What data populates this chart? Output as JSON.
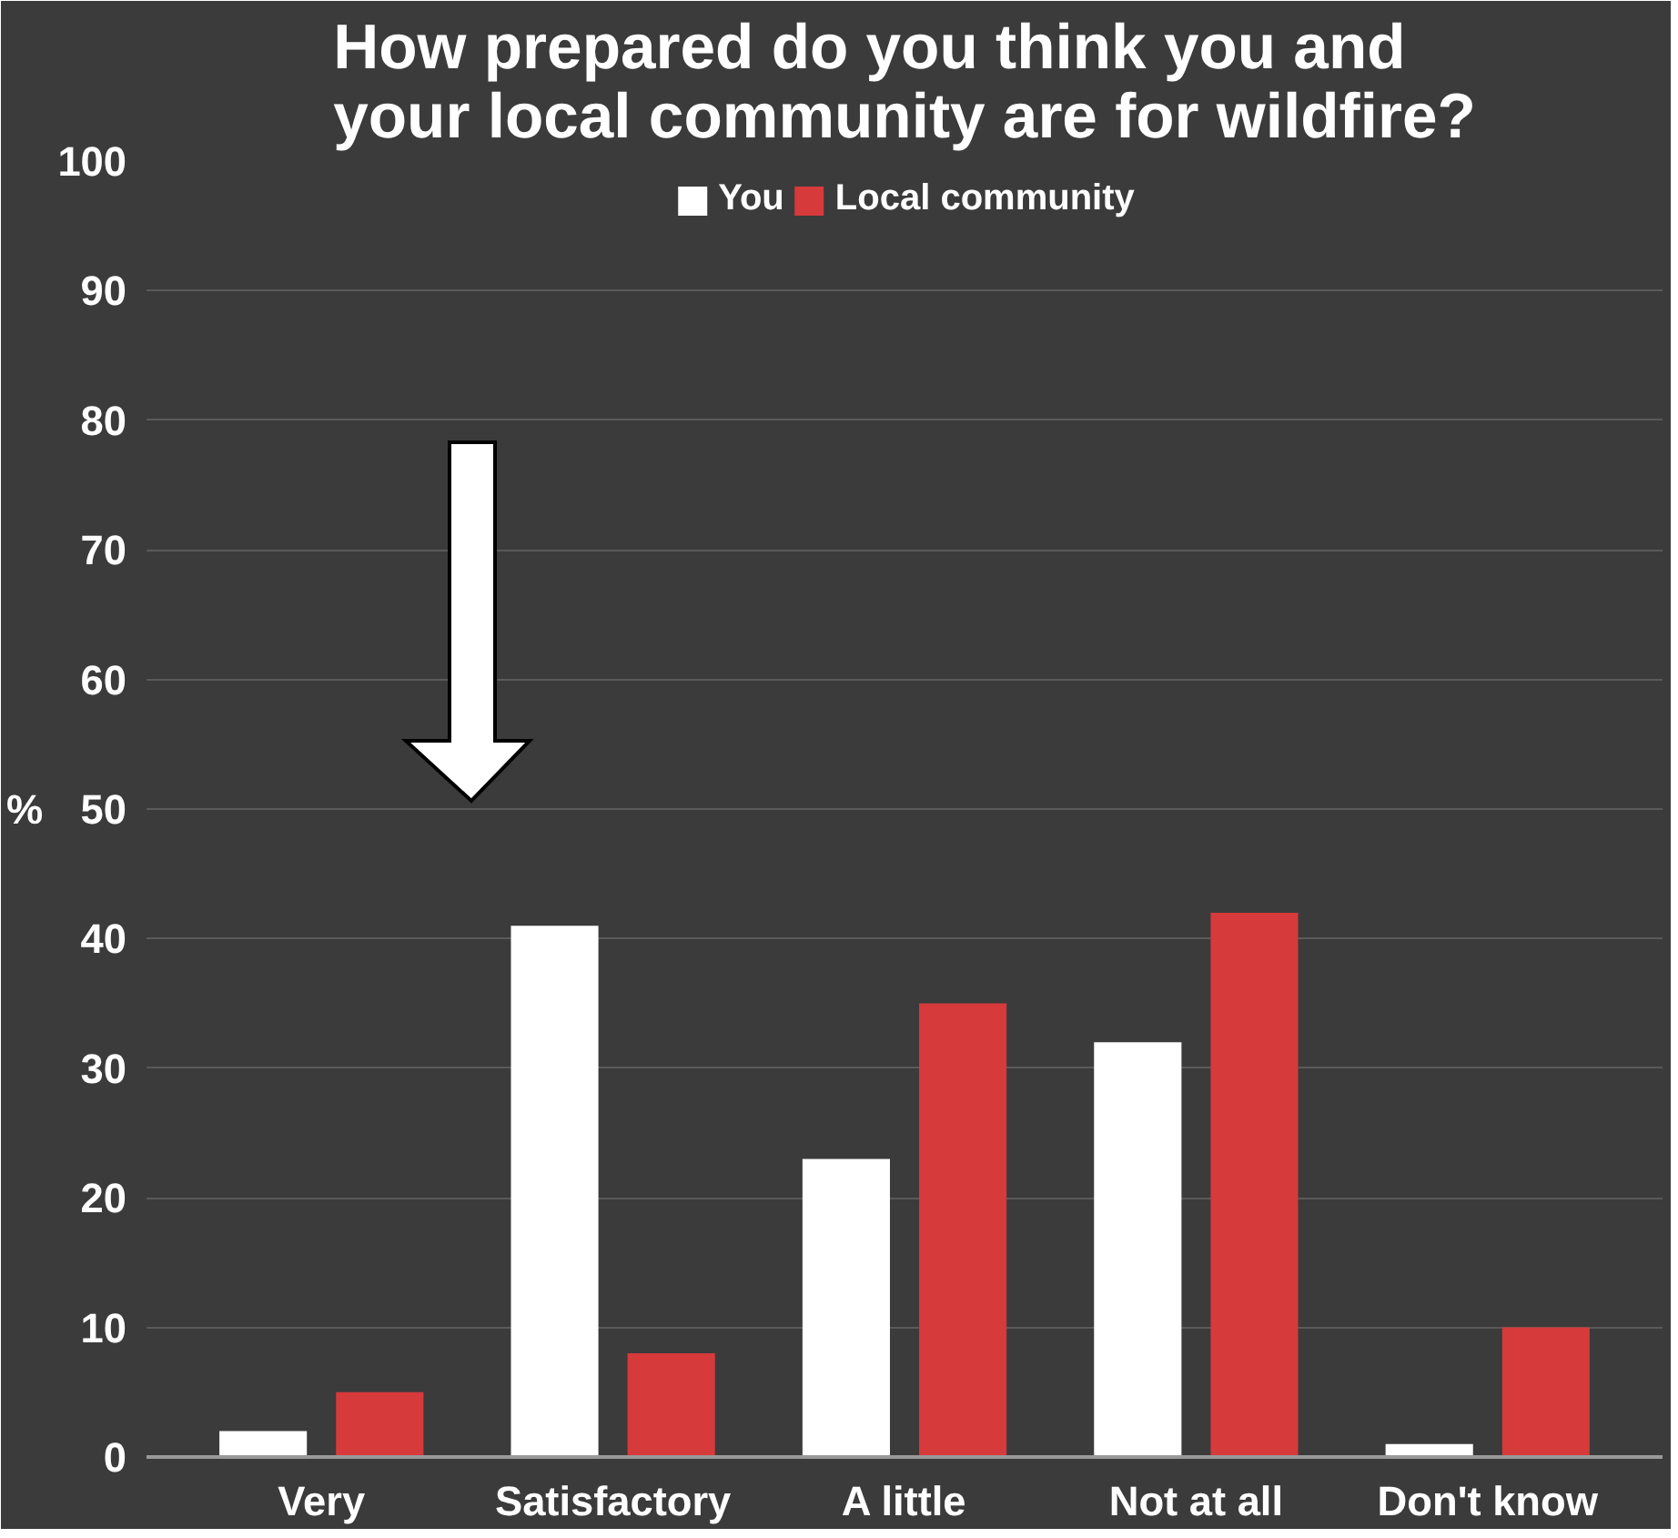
{
  "chart_data": {
    "type": "bar",
    "title": "How prepared do you think you and\nyour local community are for wildfire?",
    "ylabel": "%",
    "categories": [
      "Very",
      "Satisfactory",
      "A little",
      "Not at all",
      "Don't know"
    ],
    "series": [
      {
        "name": "You",
        "color": "#ffffff",
        "values": [
          2,
          41,
          23,
          32,
          1
        ]
      },
      {
        "name": "Local community",
        "color": "#d63a3a",
        "values": [
          5,
          8,
          35,
          42,
          10
        ]
      }
    ],
    "ylim": [
      0,
      100
    ],
    "yticks": [
      0,
      10,
      20,
      30,
      40,
      50,
      60,
      70,
      80,
      90,
      100
    ],
    "grid": "y",
    "legend": "top"
  }
}
